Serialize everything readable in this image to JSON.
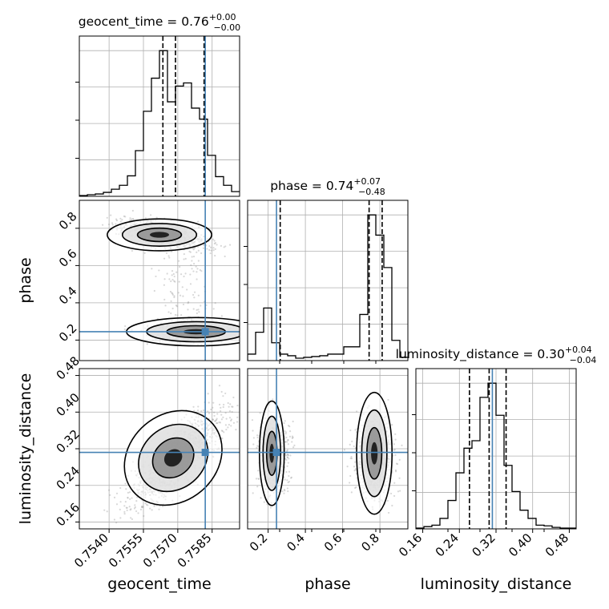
{
  "colors": {
    "truth": "#4682b4",
    "hist": "#000000",
    "quantile": "#000000",
    "scatter": "#909090",
    "grid": "#b0b0b0"
  },
  "chart_data": {
    "type": "corner",
    "parameters": [
      "geocent_time",
      "phase",
      "luminosity_distance"
    ],
    "truths": {
      "geocent_time": 0.7582,
      "phase": 0.245,
      "luminosity_distance": 0.312
    },
    "ranges": {
      "geocent_time": [
        0.7527,
        0.7597
      ],
      "phase": [
        0.09,
        0.95
      ],
      "luminosity_distance": [
        0.145,
        0.495
      ]
    },
    "ticks": {
      "geocent_time": [
        0.754,
        0.7555,
        0.757,
        0.7585
      ],
      "phase": [
        0.2,
        0.4,
        0.6,
        0.8
      ],
      "luminosity_distance": [
        0.16,
        0.24,
        0.32,
        0.4,
        0.48
      ]
    },
    "tick_labels": {
      "geocent_time": [
        "0.7540",
        "0.7555",
        "0.7570",
        "0.7585"
      ],
      "phase": [
        "0.2",
        "0.4",
        "0.6",
        "0.8"
      ],
      "luminosity_distance": [
        "0.16",
        "0.24",
        "0.32",
        "0.40",
        "0.48"
      ]
    },
    "axis_labels": {
      "geocent_time": "geocent_time",
      "phase": "phase",
      "luminosity_distance": "luminosity_distance"
    },
    "titles": [
      {
        "label": "geocent_time = 0.76",
        "sup": "+0.00",
        "sub": "−0.00"
      },
      {
        "label": "phase = 0.74",
        "sup": "+0.07",
        "sub": "−0.48"
      },
      {
        "label": "luminosity_distance = 0.30",
        "sup": "+0.04",
        "sub": "−0.04"
      }
    ],
    "quantiles": {
      "geocent_time": [
        0.75635,
        0.7569,
        0.75815
      ],
      "phase": [
        0.265,
        0.742,
        0.812
      ],
      "luminosity_distance": [
        0.262,
        0.305,
        0.342
      ]
    },
    "histograms": {
      "geocent_time": {
        "edges_start": 0.7527,
        "bin_width": 0.00035,
        "counts": [
          1,
          2,
          3,
          5,
          9,
          14,
          26,
          58,
          108,
          150,
          185,
          120,
          140,
          144,
          112,
          98,
          52,
          25,
          14,
          6
        ]
      },
      "phase": {
        "edges_start": 0.09,
        "bin_width": 0.043,
        "counts": [
          8,
          35,
          65,
          22,
          8,
          6,
          3,
          4,
          5,
          6,
          8,
          8,
          17,
          17,
          57,
          180,
          155,
          115,
          25,
          4
        ]
      },
      "luminosity_distance": {
        "edges_start": 0.145,
        "bin_width": 0.0175,
        "counts": [
          1,
          3,
          5,
          14,
          38,
          75,
          108,
          118,
          176,
          195,
          152,
          85,
          50,
          25,
          14,
          5,
          4,
          2,
          1,
          1
        ]
      }
    },
    "grid": true
  }
}
